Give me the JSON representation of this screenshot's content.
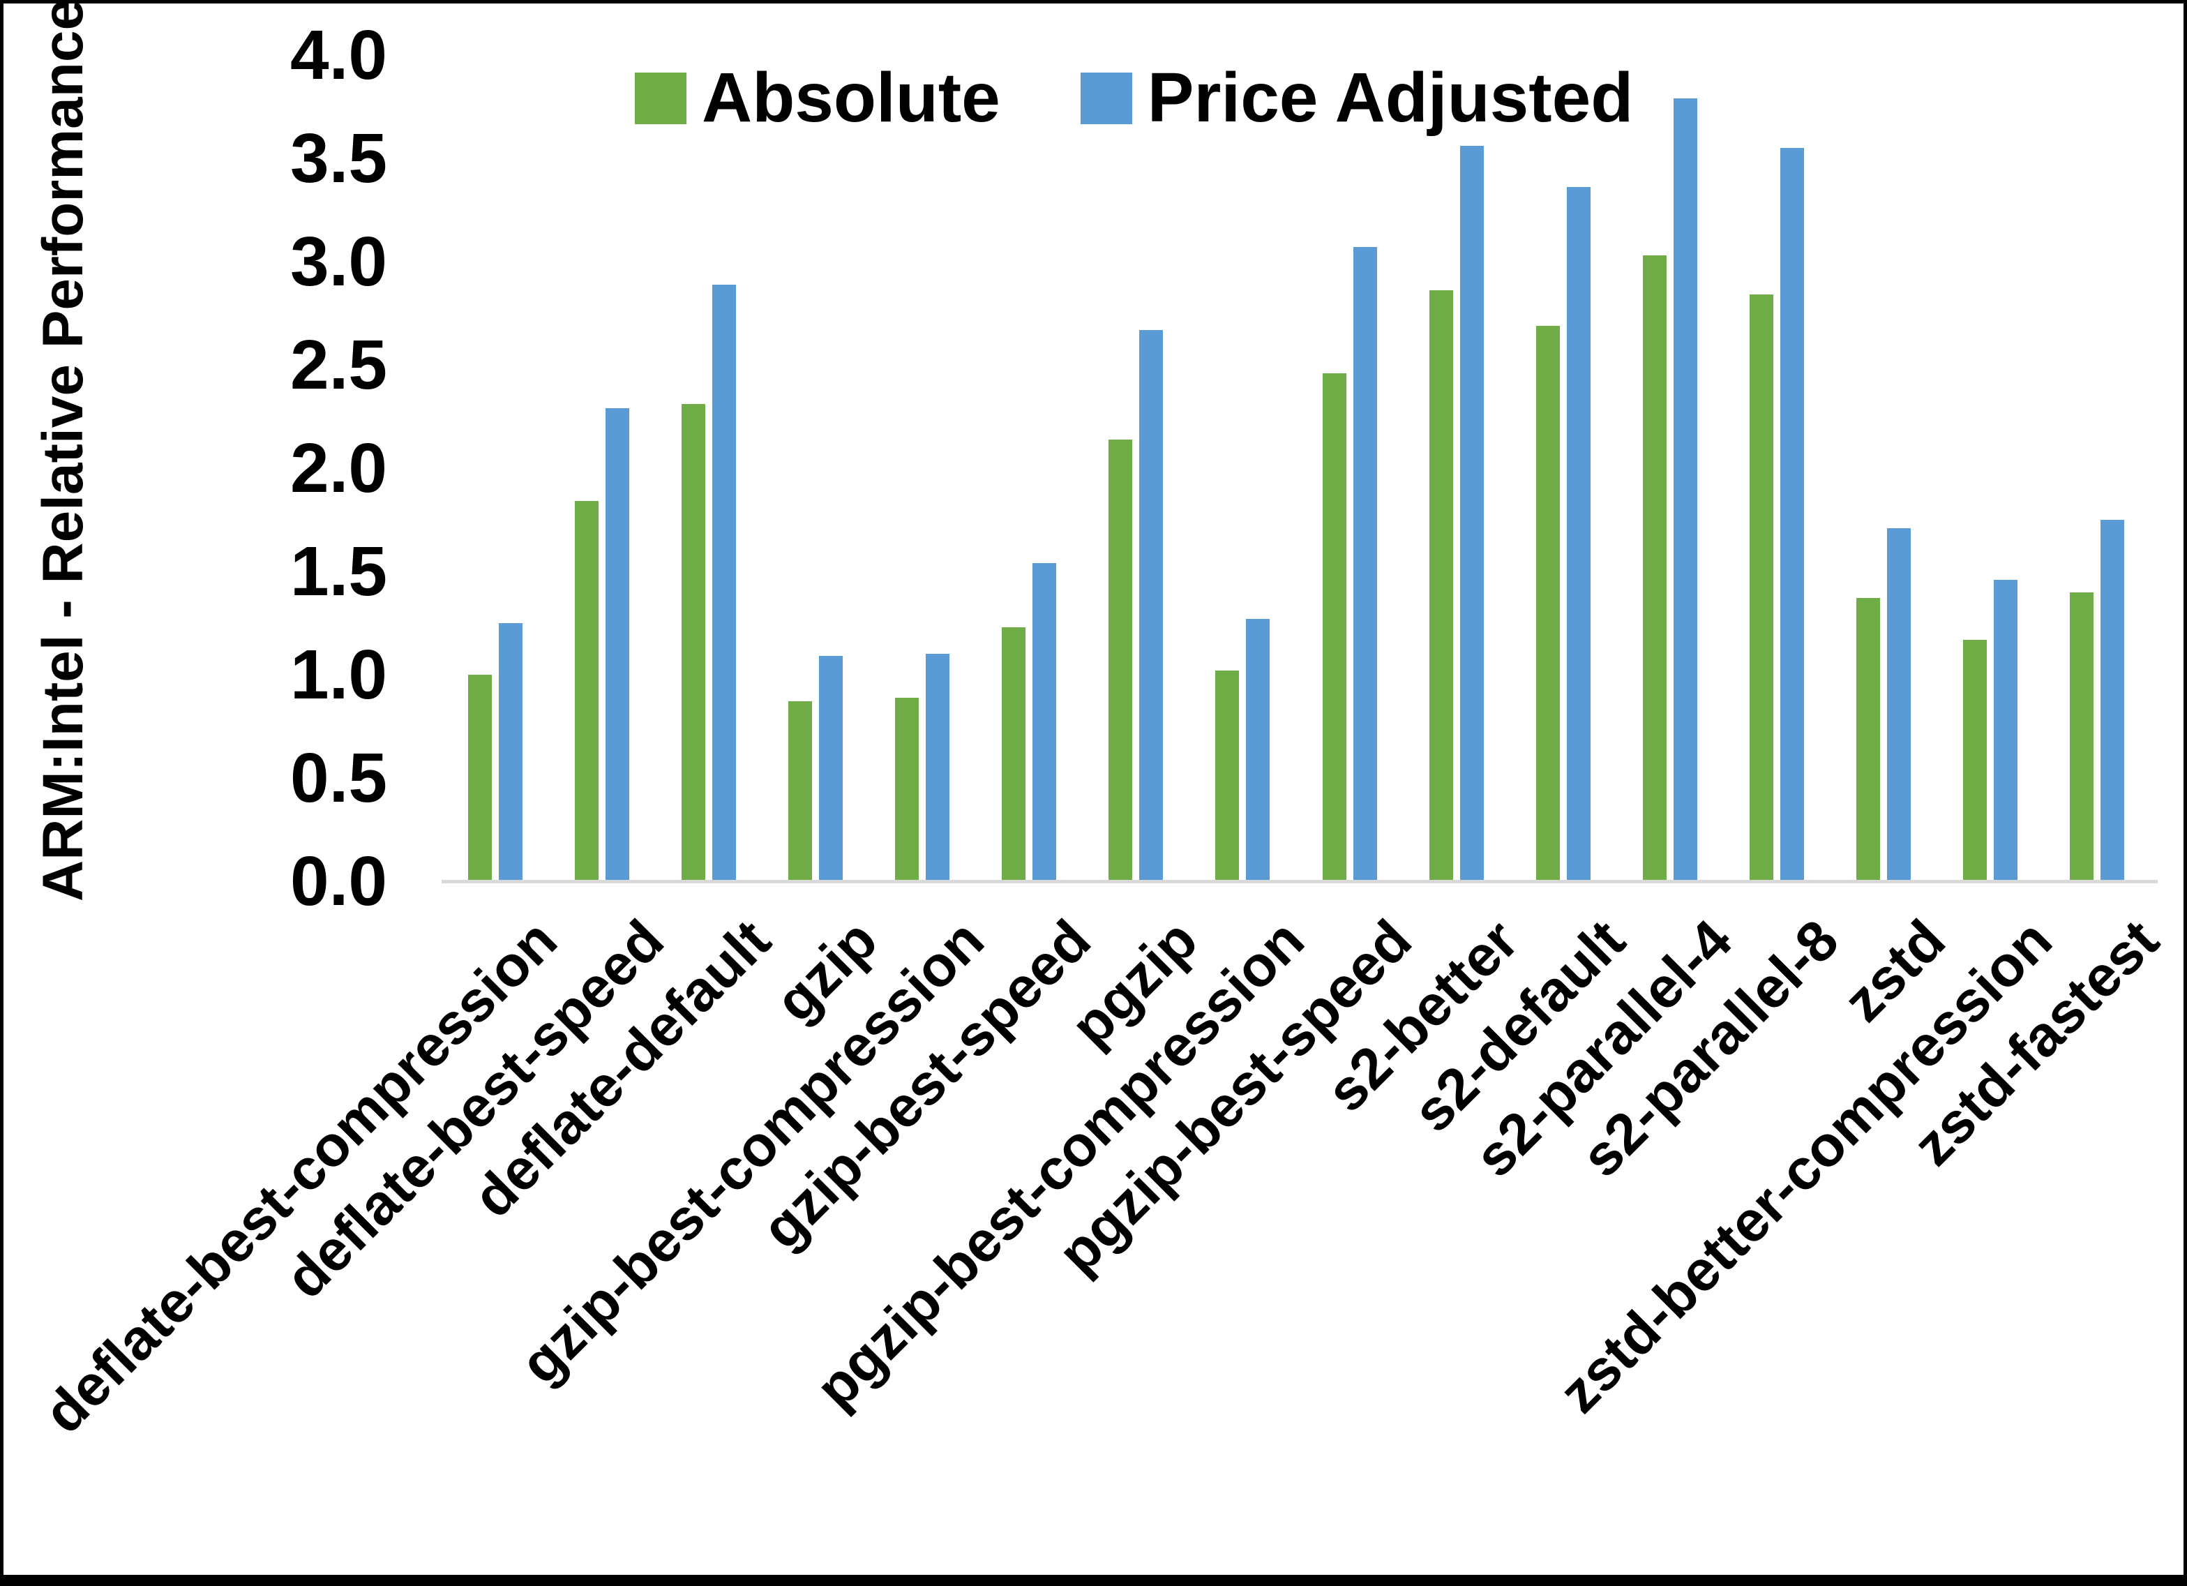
{
  "chart_data": {
    "type": "bar",
    "title": "",
    "xlabel": "",
    "ylabel": "ARM:Intel - Relative Performance",
    "ylim": [
      0.0,
      4.0
    ],
    "ytick_step": 0.5,
    "yticks": [
      "0.0",
      "0.5",
      "1.0",
      "1.5",
      "2.0",
      "2.5",
      "3.0",
      "3.5",
      "4.0"
    ],
    "grid": false,
    "legend_position": "top-center",
    "baseline_color": "#d9d9d9",
    "categories": [
      "deflate-best-compression",
      "deflate-best-speed",
      "deflate-default",
      "gzip",
      "gzip-best-compression",
      "gzip-best-speed",
      "pgzip",
      "pgzip-best-compression",
      "pgzip-best-speed",
      "s2-better",
      "s2-default",
      "s2-parallel-4",
      "s2-parallel-8",
      "zstd",
      "zstd-better-compression",
      "zstd-fastest"
    ],
    "series": [
      {
        "name": "Absolute",
        "color": "#70AD47",
        "values": [
          1.0,
          1.84,
          2.31,
          0.87,
          0.89,
          1.23,
          2.14,
          1.02,
          2.46,
          2.86,
          2.69,
          3.03,
          2.84,
          1.37,
          1.17,
          1.4
        ]
      },
      {
        "name": "Price Adjusted",
        "color": "#5B9BD5",
        "values": [
          1.25,
          2.29,
          2.89,
          1.09,
          1.1,
          1.54,
          2.67,
          1.27,
          3.07,
          3.56,
          3.36,
          3.79,
          3.55,
          1.71,
          1.46,
          1.75
        ]
      }
    ]
  }
}
